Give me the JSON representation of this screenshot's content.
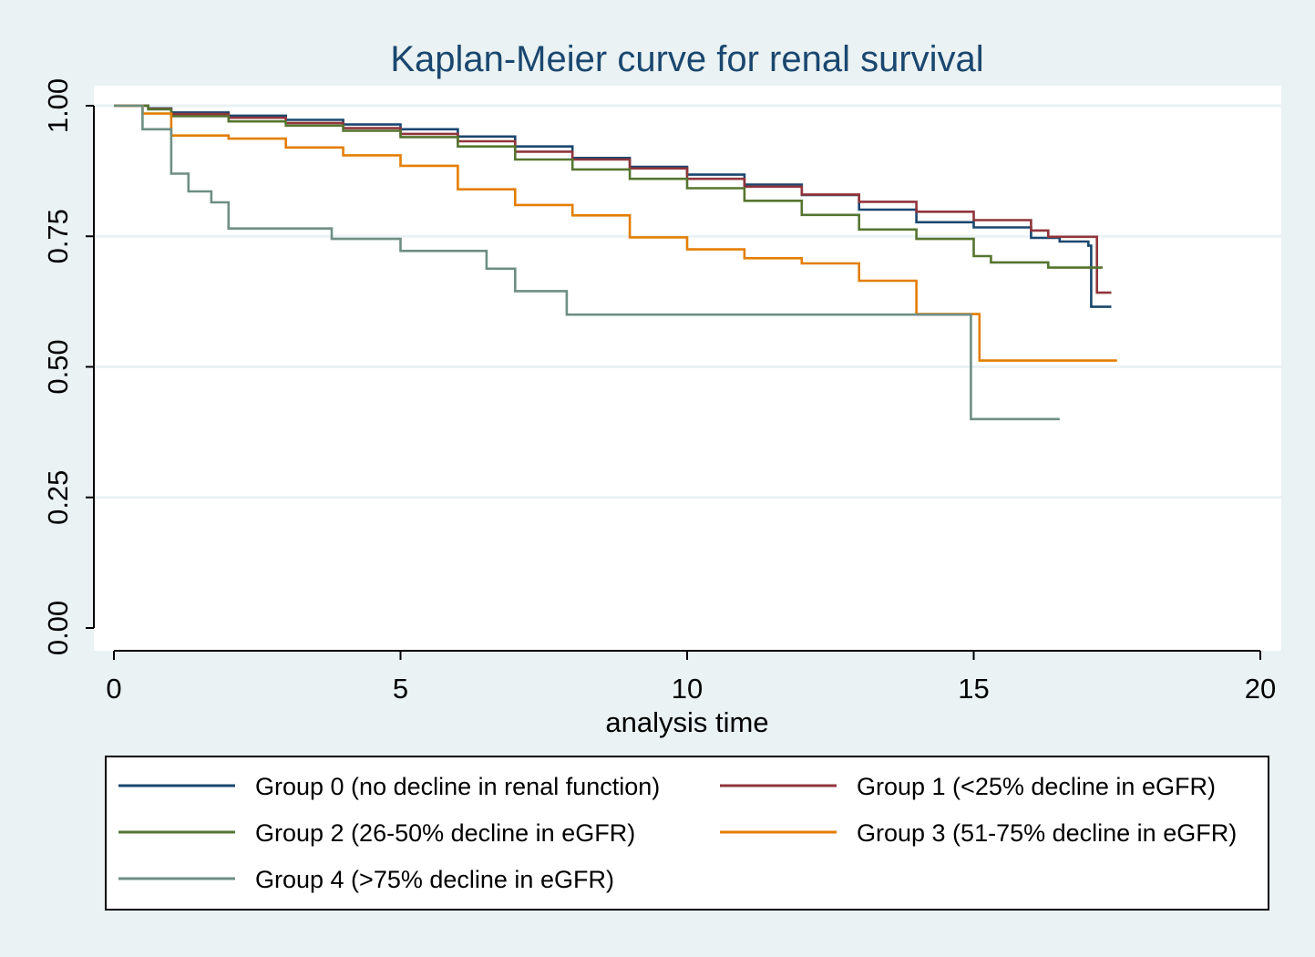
{
  "chart_data": {
    "type": "line",
    "step": true,
    "title": "Kaplan-Meier curve for renal survival",
    "xlabel": "analysis time",
    "ylabel": "",
    "xlim": [
      0,
      20
    ],
    "ylim": [
      0,
      1
    ],
    "x_ticks": [
      "0",
      "5",
      "10",
      "15",
      "20"
    ],
    "y_ticks": [
      "0.00",
      "0.25",
      "0.50",
      "0.75",
      "1.00"
    ],
    "grid": true,
    "legend_position": "bottom",
    "colors": {
      "background": "#eaf2f3",
      "plot_area": "#ffffff",
      "gridline": "#eaf2f3"
    },
    "series": [
      {
        "name": "Group 0 (no decline in renal function)",
        "color": "#1a476f",
        "points": [
          [
            0,
            1.0
          ],
          [
            0.6,
            0.995
          ],
          [
            1.0,
            0.987
          ],
          [
            2.0,
            0.981
          ],
          [
            3.0,
            0.973
          ],
          [
            4.0,
            0.964
          ],
          [
            5.0,
            0.955
          ],
          [
            6.0,
            0.941
          ],
          [
            7.0,
            0.922
          ],
          [
            8.0,
            0.9
          ],
          [
            9.0,
            0.883
          ],
          [
            10.0,
            0.868
          ],
          [
            11.0,
            0.849
          ],
          [
            12.0,
            0.829
          ],
          [
            13.0,
            0.801
          ],
          [
            14.0,
            0.777
          ],
          [
            15.0,
            0.767
          ],
          [
            16.0,
            0.747
          ],
          [
            16.5,
            0.74
          ],
          [
            17.0,
            0.732
          ],
          [
            17.05,
            0.615
          ],
          [
            17.4,
            0.615
          ]
        ]
      },
      {
        "name": "Group 1 (<25% decline in eGFR)",
        "color": "#90353b",
        "points": [
          [
            0,
            1.0
          ],
          [
            0.6,
            0.994
          ],
          [
            1.0,
            0.984
          ],
          [
            2.0,
            0.977
          ],
          [
            3.0,
            0.967
          ],
          [
            4.0,
            0.957
          ],
          [
            5.0,
            0.946
          ],
          [
            6.0,
            0.932
          ],
          [
            7.0,
            0.912
          ],
          [
            8.0,
            0.897
          ],
          [
            9.0,
            0.88
          ],
          [
            10.0,
            0.86
          ],
          [
            11.0,
            0.845
          ],
          [
            12.0,
            0.83
          ],
          [
            13.0,
            0.816
          ],
          [
            14.0,
            0.797
          ],
          [
            15.0,
            0.781
          ],
          [
            16.0,
            0.761
          ],
          [
            16.3,
            0.749
          ],
          [
            17.1,
            0.749
          ],
          [
            17.15,
            0.642
          ],
          [
            17.4,
            0.642
          ]
        ]
      },
      {
        "name": "Group 2 (26-50% decline in eGFR)",
        "color": "#55752f",
        "points": [
          [
            0,
            1.0
          ],
          [
            0.6,
            0.993
          ],
          [
            1.0,
            0.98
          ],
          [
            2.0,
            0.97
          ],
          [
            3.0,
            0.962
          ],
          [
            4.0,
            0.952
          ],
          [
            5.0,
            0.94
          ],
          [
            6.0,
            0.922
          ],
          [
            7.0,
            0.897
          ],
          [
            8.0,
            0.878
          ],
          [
            9.0,
            0.86
          ],
          [
            10.0,
            0.842
          ],
          [
            11.0,
            0.818
          ],
          [
            12.0,
            0.791
          ],
          [
            13.0,
            0.763
          ],
          [
            14.0,
            0.745
          ],
          [
            15.0,
            0.712
          ],
          [
            15.3,
            0.7
          ],
          [
            16.0,
            0.7
          ],
          [
            16.3,
            0.69
          ],
          [
            17.25,
            0.69
          ]
        ]
      },
      {
        "name": "Group 3 (51-75% decline in eGFR)",
        "color": "#e37e00",
        "points": [
          [
            0,
            1.0
          ],
          [
            0.5,
            0.985
          ],
          [
            1.0,
            0.943
          ],
          [
            2.0,
            0.937
          ],
          [
            3.0,
            0.92
          ],
          [
            4.0,
            0.905
          ],
          [
            5.0,
            0.885
          ],
          [
            6.0,
            0.84
          ],
          [
            7.0,
            0.81
          ],
          [
            8.0,
            0.79
          ],
          [
            9.0,
            0.748
          ],
          [
            10.0,
            0.725
          ],
          [
            11.0,
            0.708
          ],
          [
            12.0,
            0.698
          ],
          [
            13.0,
            0.665
          ],
          [
            14.0,
            0.601
          ],
          [
            15.0,
            0.601
          ],
          [
            15.1,
            0.512
          ],
          [
            17.5,
            0.512
          ]
        ]
      },
      {
        "name": "Group 4 (>75% decline in eGFR)",
        "color": "#6e8e84",
        "points": [
          [
            0,
            1.0
          ],
          [
            0.5,
            0.955
          ],
          [
            1.0,
            0.87
          ],
          [
            1.3,
            0.836
          ],
          [
            1.7,
            0.815
          ],
          [
            2.0,
            0.765
          ],
          [
            3.8,
            0.745
          ],
          [
            5.0,
            0.722
          ],
          [
            6.5,
            0.688
          ],
          [
            7.0,
            0.645
          ],
          [
            7.9,
            0.6
          ],
          [
            14.95,
            0.6
          ],
          [
            14.95,
            0.4
          ],
          [
            16.5,
            0.4
          ]
        ]
      }
    ]
  }
}
